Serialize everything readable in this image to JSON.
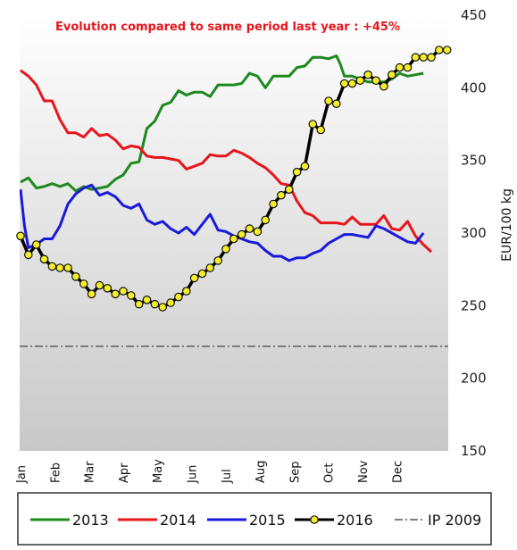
{
  "chart_data": {
    "type": "line",
    "title": "Evolution compared to same period last year : +45%",
    "ylabel": "EUR/100 kg",
    "ylim": [
      150,
      450
    ],
    "yticks": [
      150,
      200,
      250,
      300,
      350,
      400,
      450
    ],
    "xlim": [
      0,
      52
    ],
    "months": [
      "Jan",
      "Feb",
      "Mar",
      "Apr",
      "May",
      "Jun",
      "Jul",
      "Aug",
      "Sep",
      "Oct",
      "Nov",
      "Dec"
    ],
    "reference_line": {
      "name": "IP 2009",
      "value": 222
    },
    "background_gradient": [
      "#ffffff",
      "#c8c8c8"
    ],
    "legend_position": "bottom",
    "series": [
      {
        "name": "2013",
        "color": "#1e8a1e",
        "style": "line",
        "points": [
          [
            0,
            335
          ],
          [
            1,
            338
          ],
          [
            2,
            331
          ],
          [
            3,
            332
          ],
          [
            4,
            334
          ],
          [
            5,
            332
          ],
          [
            6,
            334
          ],
          [
            7,
            329
          ],
          [
            8,
            332
          ],
          [
            9,
            330
          ],
          [
            10,
            331
          ],
          [
            11,
            332
          ],
          [
            12,
            337
          ],
          [
            13,
            340
          ],
          [
            14,
            348
          ],
          [
            15,
            349
          ],
          [
            16,
            372
          ],
          [
            17,
            377
          ],
          [
            18,
            388
          ],
          [
            19,
            390
          ],
          [
            20,
            398
          ],
          [
            21,
            395
          ],
          [
            22,
            397
          ],
          [
            23,
            397
          ],
          [
            24,
            394
          ],
          [
            25,
            402
          ],
          [
            26,
            402
          ],
          [
            27,
            402
          ],
          [
            28,
            403
          ],
          [
            29,
            410
          ],
          [
            30,
            408
          ],
          [
            31,
            400
          ],
          [
            32,
            408
          ],
          [
            33,
            408
          ],
          [
            34,
            408
          ],
          [
            35,
            414
          ],
          [
            36,
            415
          ],
          [
            37,
            421
          ],
          [
            38,
            421
          ],
          [
            39,
            420
          ],
          [
            40,
            422
          ],
          [
            40.5,
            416
          ],
          [
            41,
            408
          ],
          [
            42,
            408
          ],
          [
            43,
            406
          ],
          [
            44,
            404
          ],
          [
            45,
            404
          ],
          [
            46,
            404
          ],
          [
            47,
            406
          ],
          [
            48,
            410
          ],
          [
            49,
            408
          ],
          [
            50,
            409
          ],
          [
            51,
            410
          ]
        ]
      },
      {
        "name": "2014",
        "color": "#e8151b",
        "style": "line",
        "points": [
          [
            0,
            412
          ],
          [
            1,
            408
          ],
          [
            2,
            402
          ],
          [
            3,
            391
          ],
          [
            4,
            391
          ],
          [
            5,
            378
          ],
          [
            6,
            369
          ],
          [
            7,
            369
          ],
          [
            8,
            366
          ],
          [
            9,
            372
          ],
          [
            10,
            367
          ],
          [
            11,
            368
          ],
          [
            12,
            364
          ],
          [
            13,
            358
          ],
          [
            14,
            360
          ],
          [
            15,
            359
          ],
          [
            16,
            353
          ],
          [
            17,
            352
          ],
          [
            18,
            352
          ],
          [
            19,
            351
          ],
          [
            20,
            350
          ],
          [
            21,
            344
          ],
          [
            22,
            346
          ],
          [
            23,
            348
          ],
          [
            24,
            354
          ],
          [
            25,
            353
          ],
          [
            26,
            353
          ],
          [
            27,
            357
          ],
          [
            28,
            355
          ],
          [
            29,
            352
          ],
          [
            30,
            348
          ],
          [
            31,
            345
          ],
          [
            32,
            340
          ],
          [
            33,
            334
          ],
          [
            34,
            333
          ],
          [
            35,
            322
          ],
          [
            36,
            314
          ],
          [
            37,
            312
          ],
          [
            38,
            307
          ],
          [
            39,
            307
          ],
          [
            40,
            307
          ],
          [
            41,
            306
          ],
          [
            42,
            311
          ],
          [
            43,
            306
          ],
          [
            44,
            306
          ],
          [
            45,
            306
          ],
          [
            46,
            312
          ],
          [
            47,
            303
          ],
          [
            48,
            302
          ],
          [
            49,
            308
          ],
          [
            50,
            298
          ],
          [
            51,
            292
          ],
          [
            52,
            287
          ]
        ]
      },
      {
        "name": "2015",
        "color": "#1a1adc",
        "style": "line",
        "points": [
          [
            0,
            330
          ],
          [
            0.5,
            305
          ],
          [
            1,
            290
          ],
          [
            2,
            292
          ],
          [
            3,
            296
          ],
          [
            4,
            296
          ],
          [
            5,
            305
          ],
          [
            6,
            320
          ],
          [
            7,
            327
          ],
          [
            8,
            331
          ],
          [
            9,
            333
          ],
          [
            10,
            326
          ],
          [
            11,
            328
          ],
          [
            12,
            325
          ],
          [
            13,
            319
          ],
          [
            14,
            317
          ],
          [
            15,
            320
          ],
          [
            16,
            309
          ],
          [
            17,
            306
          ],
          [
            18,
            308
          ],
          [
            19,
            303
          ],
          [
            20,
            300
          ],
          [
            21,
            304
          ],
          [
            22,
            299
          ],
          [
            23,
            306
          ],
          [
            24,
            313
          ],
          [
            25,
            302
          ],
          [
            26,
            301
          ],
          [
            27,
            298
          ],
          [
            28,
            296
          ],
          [
            29,
            294
          ],
          [
            30,
            293
          ],
          [
            31,
            288
          ],
          [
            32,
            284
          ],
          [
            33,
            284
          ],
          [
            34,
            281
          ],
          [
            35,
            283
          ],
          [
            36,
            283
          ],
          [
            37,
            286
          ],
          [
            38,
            288
          ],
          [
            39,
            293
          ],
          [
            40,
            296
          ],
          [
            41,
            299
          ],
          [
            42,
            299
          ],
          [
            43,
            298
          ],
          [
            44,
            297
          ],
          [
            45,
            305
          ],
          [
            46,
            303
          ],
          [
            47,
            300
          ],
          [
            48,
            297
          ],
          [
            49,
            294
          ],
          [
            50,
            293
          ],
          [
            51,
            300
          ]
        ]
      },
      {
        "name": "2016",
        "color": "#000000",
        "style": "line-marker",
        "marker_fill": "#f5ec2c",
        "points": [
          [
            0,
            298
          ],
          [
            1,
            285
          ],
          [
            2,
            292
          ],
          [
            3,
            282
          ],
          [
            4,
            277
          ],
          [
            5,
            276
          ],
          [
            6,
            276
          ],
          [
            7,
            270
          ],
          [
            8,
            265
          ],
          [
            9,
            258
          ],
          [
            10,
            264
          ],
          [
            11,
            262
          ],
          [
            12,
            258
          ],
          [
            13,
            260
          ],
          [
            14,
            257
          ],
          [
            15,
            251
          ],
          [
            16,
            254
          ],
          [
            17,
            251
          ],
          [
            18,
            249
          ],
          [
            19,
            252
          ],
          [
            20,
            256
          ],
          [
            21,
            260
          ],
          [
            22,
            269
          ],
          [
            23,
            272
          ],
          [
            24,
            276
          ],
          [
            25,
            281
          ],
          [
            26,
            289
          ],
          [
            27,
            296
          ],
          [
            28,
            299
          ],
          [
            29,
            303
          ],
          [
            30,
            301
          ],
          [
            31,
            309
          ],
          [
            32,
            320
          ],
          [
            33,
            326
          ],
          [
            34,
            330
          ],
          [
            35,
            342
          ],
          [
            36,
            346
          ],
          [
            37,
            375
          ],
          [
            38,
            371
          ],
          [
            39,
            391
          ],
          [
            40,
            389
          ],
          [
            41,
            403
          ],
          [
            42,
            403
          ],
          [
            43,
            405
          ],
          [
            44,
            409
          ],
          [
            45,
            405
          ],
          [
            46,
            401
          ],
          [
            47,
            409
          ],
          [
            48,
            414
          ],
          [
            49,
            414
          ],
          [
            50,
            421
          ],
          [
            51,
            421
          ],
          [
            52,
            421
          ],
          [
            53,
            426
          ],
          [
            54,
            426
          ]
        ]
      }
    ]
  },
  "legend": {
    "items": [
      {
        "label": "2013",
        "color": "#1e8a1e",
        "style": "line"
      },
      {
        "label": "2014",
        "color": "#e8151b",
        "style": "line"
      },
      {
        "label": "2015",
        "color": "#1a1adc",
        "style": "line"
      },
      {
        "label": "2016",
        "color": "#000000",
        "style": "line-marker"
      },
      {
        "label": "IP 2009",
        "color": "#000000",
        "style": "dashdot"
      }
    ]
  }
}
